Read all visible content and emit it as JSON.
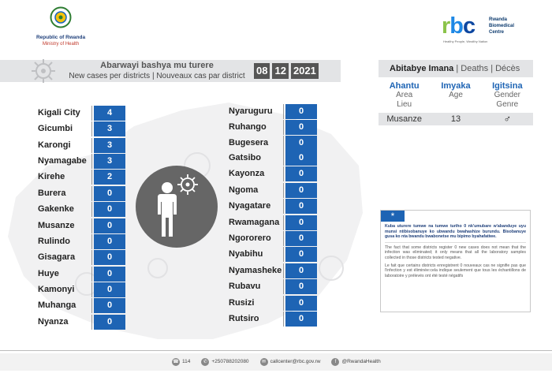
{
  "header": {
    "gov_line1": "Republic of Rwanda",
    "gov_line2": "Ministry of Health",
    "rbc_letters": [
      "r",
      "b",
      "c"
    ],
    "rbc_name": "Rwanda Biomedical Centre",
    "rbc_tagline": "Healthy People, Wealthy Nation"
  },
  "title": {
    "kinyarwanda": "Abarwayi bashya mu turere",
    "en_fr": "New cases per districts  |  Nouveaux cas par district"
  },
  "date_parts": [
    "08",
    "12",
    "2021"
  ],
  "districts_left": [
    {
      "name": "Kigali City",
      "count": "4"
    },
    {
      "name": "Gicumbi",
      "count": "3"
    },
    {
      "name": "Karongi",
      "count": "3"
    },
    {
      "name": "Nyamagabe",
      "count": "3"
    },
    {
      "name": "Kirehe",
      "count": "2"
    },
    {
      "name": "Burera",
      "count": "0"
    },
    {
      "name": "Gakenke",
      "count": "0"
    },
    {
      "name": "Musanze",
      "count": "0"
    },
    {
      "name": "Rulindo",
      "count": "0"
    },
    {
      "name": "Gisagara",
      "count": "0"
    },
    {
      "name": "Huye",
      "count": "0"
    },
    {
      "name": "Kamonyi",
      "count": "0"
    },
    {
      "name": "Muhanga",
      "count": "0"
    },
    {
      "name": "Nyanza",
      "count": "0"
    }
  ],
  "districts_right": [
    {
      "name": "Nyaruguru",
      "count": "0"
    },
    {
      "name": "Ruhango",
      "count": "0"
    },
    {
      "name": "Bugesera",
      "count": "0"
    },
    {
      "name": "Gatsibo",
      "count": "0"
    },
    {
      "name": "Kayonza",
      "count": "0"
    },
    {
      "name": "Ngoma",
      "count": "0"
    },
    {
      "name": "Nyagatare",
      "count": "0"
    },
    {
      "name": "Rwamagana",
      "count": "0"
    },
    {
      "name": "Ngororero",
      "count": "0"
    },
    {
      "name": "Nyabihu",
      "count": "0"
    },
    {
      "name": "Nyamasheke",
      "count": "0"
    },
    {
      "name": "Rubavu",
      "count": "0"
    },
    {
      "name": "Rusizi",
      "count": "0"
    },
    {
      "name": "Rutsiro",
      "count": "0"
    }
  ],
  "deaths": {
    "head_bold": "Abitabye Imana",
    "head_rest": "  |  Deaths  |  Décès",
    "columns": [
      {
        "key": "Ahantu",
        "l2": "Area",
        "l3": "Lieu"
      },
      {
        "key": "Imyaka",
        "l2": "Age",
        "l3": ""
      },
      {
        "key": "Igitsina",
        "l2": "Gender",
        "l3": "Genre"
      }
    ],
    "row": {
      "area": "Musanze",
      "age": "13",
      "gender": "♂"
    }
  },
  "note": {
    "star": "*",
    "kinyarwanda": "Kuba uturere tumwe na tumwe turiho 0 nk'umubare w'abanduye uyu munsi ntibisobanuye ko ubwandu bwahashize burundu. Bisobanuye gusa ko nta bwandu bwabonetse mu bipimo byahafatiwe.",
    "english": "The fact that some districts register 0 new cases does not mean that the infection was eliminated; it only means that all the laboratory samples collected in those districts tested negative.",
    "french": "Le fait que certains districts enregistrent 0 nouveaux cas ne signifie pas que l'infection y est éliminée:cela indique seulement que tous les échantillons de laboratoire y prélevés ont été testé négatifs"
  },
  "footer": {
    "hotline": "114",
    "phone": "+250788202080",
    "email": "callcenter@rbc.gov.rw",
    "social": "@RwandaHealth"
  },
  "colors": {
    "accent": "#1e64b4",
    "band": "#e3e4e6"
  }
}
